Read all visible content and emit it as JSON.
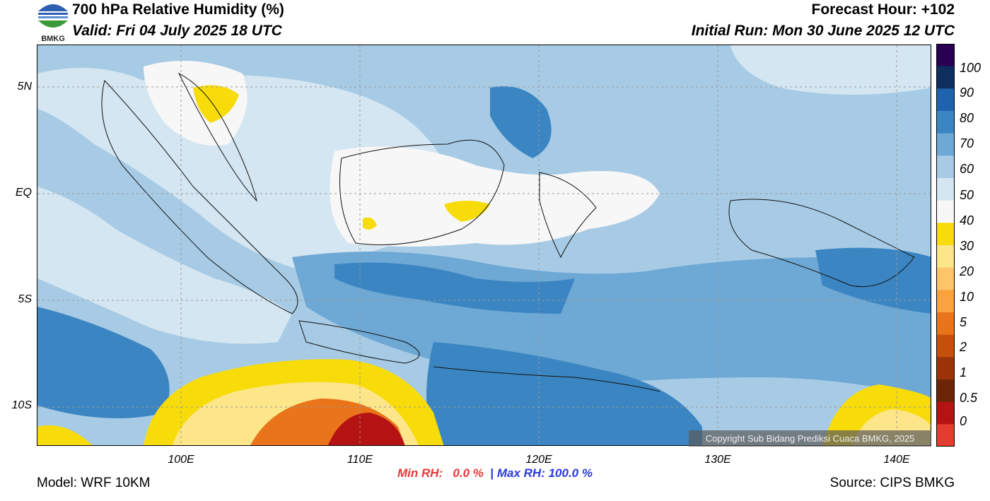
{
  "header": {
    "title": "700 hPa Relative Humidity (%)",
    "valid": "Valid: Fri 04 July 2025 18 UTC",
    "forecast_hour": "Forecast Hour: +102",
    "initial_run": "Initial Run: Mon 30 June 2025 12 UTC"
  },
  "logo": {
    "text": "BMKG"
  },
  "axes": {
    "lat_labels": [
      "5N",
      "EQ",
      "5S",
      "10S"
    ],
    "lon_labels": [
      "100E",
      "110E",
      "120E",
      "130E",
      "140E"
    ]
  },
  "colorbar": {
    "labels": [
      "100",
      "90",
      "80",
      "70",
      "60",
      "50",
      "40",
      "30",
      "20",
      "10",
      "5",
      "2",
      "1",
      "0.5",
      "0"
    ],
    "colors": [
      "#2a0052",
      "#0d2e5e",
      "#1f63ad",
      "#3b86c2",
      "#6ea8d4",
      "#a7cbe5",
      "#d4e6f1",
      "#f7f7f7",
      "#f7dc0a",
      "#fde58a",
      "#fdc469",
      "#f9a23e",
      "#e9741a",
      "#c4500c",
      "#9a3408",
      "#6b2608",
      "#b51313",
      "#e43d30"
    ]
  },
  "copyright": "Copyright Sub Bidang Prediksi Cuaca BMKG, 2025",
  "stats": {
    "min_label": "Min RH:",
    "min_value": "0.0 %",
    "separator": "|",
    "max_label": "Max RH:",
    "max_value": "100.0 %",
    "min_color": "#e8393a",
    "max_color": "#2a3adb"
  },
  "footer": {
    "model": "Model: WRF 10KM",
    "source": "Source: CIPS BMKG"
  }
}
